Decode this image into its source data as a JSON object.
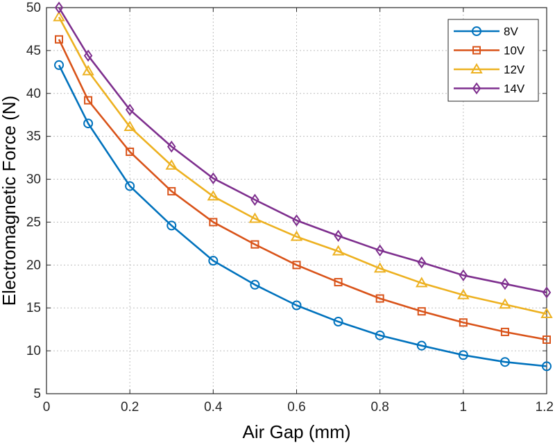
{
  "chart_data": {
    "type": "line",
    "xlabel": "Air Gap (mm)",
    "ylabel": "Electromagnetic Force (N)",
    "xlim": [
      0,
      1.2
    ],
    "ylim": [
      5,
      50
    ],
    "xticks": [
      0,
      0.2,
      0.4,
      0.6,
      0.8,
      1,
      1.2
    ],
    "xtick_labels": [
      "0",
      "0.2",
      "0.4",
      "0.6",
      "0.8",
      "1",
      "1.2"
    ],
    "yticks": [
      5,
      10,
      15,
      20,
      25,
      30,
      35,
      40,
      45,
      50
    ],
    "ytick_labels": [
      "5",
      "10",
      "15",
      "20",
      "25",
      "30",
      "35",
      "40",
      "45",
      "50"
    ],
    "grid": true,
    "legend_position": "top-right",
    "x": [
      0.03,
      0.1,
      0.2,
      0.3,
      0.4,
      0.5,
      0.6,
      0.7,
      0.8,
      0.9,
      1.0,
      1.1,
      1.2
    ],
    "series": [
      {
        "name": "8V",
        "color": "#0072BD",
        "marker": "circle",
        "values": [
          43.3,
          36.5,
          29.2,
          24.6,
          20.5,
          17.7,
          15.3,
          13.4,
          11.8,
          10.6,
          9.5,
          8.7,
          8.2
        ]
      },
      {
        "name": "10V",
        "color": "#D95319",
        "marker": "square",
        "values": [
          46.3,
          39.2,
          33.2,
          28.6,
          25.0,
          22.4,
          20.0,
          18.0,
          16.1,
          14.6,
          13.3,
          12.2,
          11.3
        ]
      },
      {
        "name": "12V",
        "color": "#EDB120",
        "marker": "triangle",
        "values": [
          48.9,
          42.6,
          36.1,
          31.6,
          28.0,
          25.4,
          23.3,
          21.6,
          19.6,
          17.9,
          16.5,
          15.4,
          14.3
        ]
      },
      {
        "name": "14V",
        "color": "#7E2F8E",
        "marker": "diamond",
        "values": [
          50.0,
          44.4,
          38.1,
          33.8,
          30.1,
          27.6,
          25.2,
          23.4,
          21.7,
          20.3,
          18.8,
          17.8,
          16.8
        ]
      }
    ]
  }
}
